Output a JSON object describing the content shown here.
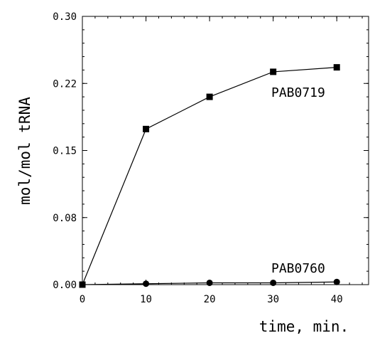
{
  "chart_data": {
    "type": "line",
    "xlabel": "time, min.",
    "ylabel": "mol/mol tRNA",
    "xlim": [
      0,
      45
    ],
    "ylim": [
      0,
      0.3
    ],
    "xticks": [
      0,
      10,
      20,
      30,
      40
    ],
    "xtick_labels": [
      "0",
      "10",
      "20",
      "30",
      "40"
    ],
    "yticks": [
      0,
      0.075,
      0.15,
      0.225,
      0.3
    ],
    "ytick_labels": [
      "0.00",
      "0.08",
      "0.15",
      "0.22",
      "0.30"
    ],
    "grid": false,
    "series": [
      {
        "name": "PAB0719",
        "marker": "square",
        "color": "#000000",
        "x": [
          0,
          10,
          20,
          30,
          40
        ],
        "y": [
          0.0,
          0.174,
          0.21,
          0.238,
          0.243
        ]
      },
      {
        "name": "PAB0760",
        "marker": "circle",
        "color": "#000000",
        "x": [
          0,
          10,
          20,
          30,
          40
        ],
        "y": [
          0.0,
          0.001,
          0.002,
          0.002,
          0.003
        ]
      }
    ]
  }
}
